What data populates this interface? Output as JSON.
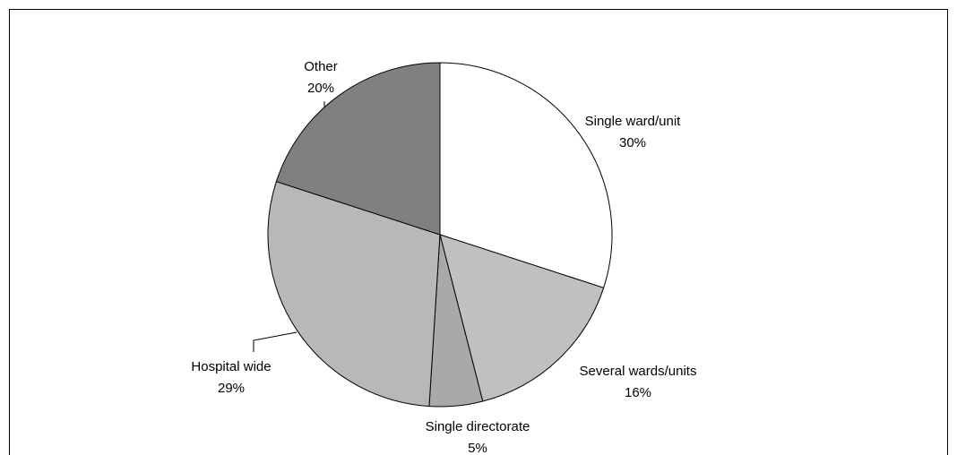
{
  "chart_data": {
    "type": "pie",
    "categories": [
      "Single ward/unit",
      "Several wards/units",
      "Single directorate",
      "Hospital wide",
      "Other"
    ],
    "values": [
      30,
      16,
      5,
      29,
      20
    ],
    "value_labels": [
      "30%",
      "16%",
      "5%",
      "29%",
      "20%"
    ],
    "colors": [
      "#ffffff",
      "#c0c0c0",
      "#a9a9a9",
      "#b8b8b8",
      "#808080"
    ]
  }
}
